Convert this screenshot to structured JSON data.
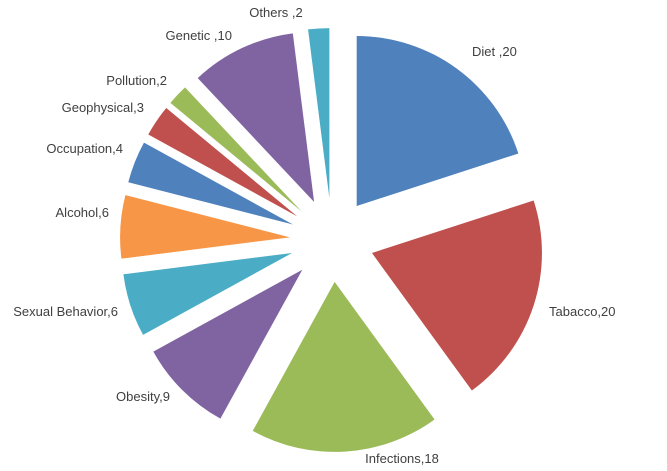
{
  "chart_data": {
    "type": "pie",
    "exploded": true,
    "title": "",
    "slices": [
      {
        "label": "Diet ,20",
        "name": "Diet",
        "value": 20,
        "color": "#4f81bd"
      },
      {
        "label": "Tabacco,20",
        "name": "Tabacco",
        "value": 20,
        "color": "#c0504d"
      },
      {
        "label": "Infections,18",
        "name": "Infections",
        "value": 18,
        "color": "#9bbb59"
      },
      {
        "label": "Obesity,9",
        "name": "Obesity",
        "value": 9,
        "color": "#8064a2"
      },
      {
        "label": "Sexual Behavior,6",
        "name": "Sexual Behavior",
        "value": 6,
        "color": "#4bacc6"
      },
      {
        "label": "Alcohol,6",
        "name": "Alcohol",
        "value": 6,
        "color": "#f79646"
      },
      {
        "label": "Occupation,4",
        "name": "Occupation",
        "value": 4,
        "color": "#4f81bd"
      },
      {
        "label": "Geophysical,3",
        "name": "Geophysical",
        "value": 3,
        "color": "#c0504d"
      },
      {
        "label": "Pollution,2",
        "name": "Pollution",
        "value": 2,
        "color": "#9bbb59"
      },
      {
        "label": "Genetic ,10",
        "name": "Genetic",
        "value": 10,
        "color": "#8064a2"
      },
      {
        "label": "Others ,2",
        "name": "Others",
        "value": 2,
        "color": "#4bacc6"
      }
    ]
  }
}
